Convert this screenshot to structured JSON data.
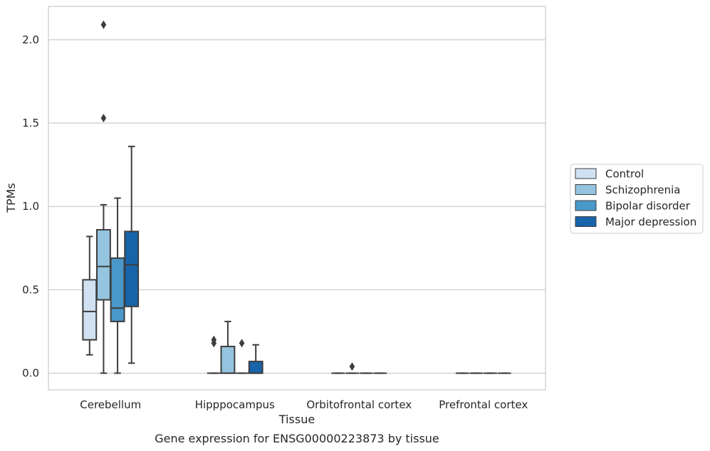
{
  "chart_data": {
    "type": "box",
    "title": "Gene expression for ENSG00000223873 by tissue",
    "xlabel": "Tissue",
    "ylabel": "TPMs",
    "ylim": [
      -0.1,
      2.2
    ],
    "yticks": [
      0.0,
      0.5,
      1.0,
      1.5,
      2.0
    ],
    "ytick_labels": [
      "0.0",
      "0.5",
      "1.0",
      "1.5",
      "2.0"
    ],
    "categories": [
      "Cerebellum",
      "Hipppocampus",
      "Orbitofrontal cortex",
      "Prefrontal cortex"
    ],
    "grid": "horizontal",
    "legend_position": "right",
    "series": [
      {
        "name": "Control",
        "color": "#d0e1f2",
        "boxes": [
          {
            "whislo": 0.11,
            "q1": 0.2,
            "med": 0.37,
            "q3": 0.56,
            "whishi": 0.82,
            "fliers": []
          },
          {
            "whislo": 0.0,
            "q1": 0.0,
            "med": 0.0,
            "q3": 0.0,
            "whishi": 0.0,
            "fliers": [
              0.18,
              0.2
            ]
          },
          {
            "whislo": 0.0,
            "q1": 0.0,
            "med": 0.0,
            "q3": 0.0,
            "whishi": 0.0,
            "fliers": []
          },
          {
            "whislo": 0.0,
            "q1": 0.0,
            "med": 0.0,
            "q3": 0.0,
            "whishi": 0.0,
            "fliers": []
          }
        ]
      },
      {
        "name": "Schizophrenia",
        "color": "#94c4df",
        "boxes": [
          {
            "whislo": 0.0,
            "q1": 0.44,
            "med": 0.64,
            "q3": 0.86,
            "whishi": 1.01,
            "fliers": [
              1.53,
              2.09
            ]
          },
          {
            "whislo": 0.0,
            "q1": 0.0,
            "med": 0.0,
            "q3": 0.16,
            "whishi": 0.31,
            "fliers": []
          },
          {
            "whislo": 0.0,
            "q1": 0.0,
            "med": 0.0,
            "q3": 0.0,
            "whishi": 0.0,
            "fliers": [
              0.04
            ]
          },
          {
            "whislo": 0.0,
            "q1": 0.0,
            "med": 0.0,
            "q3": 0.0,
            "whishi": 0.0,
            "fliers": []
          }
        ]
      },
      {
        "name": "Bipolar disorder",
        "color": "#4a98c9",
        "boxes": [
          {
            "whislo": 0.0,
            "q1": 0.31,
            "med": 0.39,
            "q3": 0.69,
            "whishi": 1.05,
            "fliers": []
          },
          {
            "whislo": 0.0,
            "q1": 0.0,
            "med": 0.0,
            "q3": 0.0,
            "whishi": 0.0,
            "fliers": [
              0.18
            ]
          },
          {
            "whislo": 0.0,
            "q1": 0.0,
            "med": 0.0,
            "q3": 0.0,
            "whishi": 0.0,
            "fliers": []
          },
          {
            "whislo": 0.0,
            "q1": 0.0,
            "med": 0.0,
            "q3": 0.0,
            "whishi": 0.0,
            "fliers": []
          }
        ]
      },
      {
        "name": "Major depression",
        "color": "#1764ab",
        "boxes": [
          {
            "whislo": 0.06,
            "q1": 0.4,
            "med": 0.65,
            "q3": 0.85,
            "whishi": 1.36,
            "fliers": []
          },
          {
            "whislo": 0.0,
            "q1": 0.0,
            "med": 0.0,
            "q3": 0.07,
            "whishi": 0.17,
            "fliers": []
          },
          {
            "whislo": 0.0,
            "q1": 0.0,
            "med": 0.0,
            "q3": 0.0,
            "whishi": 0.0,
            "fliers": []
          },
          {
            "whislo": 0.0,
            "q1": 0.0,
            "med": 0.0,
            "q3": 0.0,
            "whishi": 0.0,
            "fliers": []
          }
        ]
      }
    ]
  }
}
